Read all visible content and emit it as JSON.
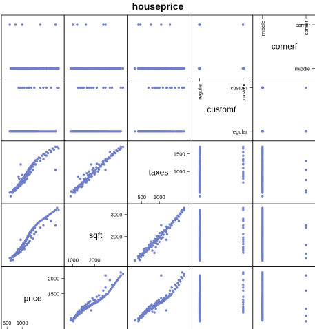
{
  "title": "houseprice",
  "colors": {
    "points": "#7080c8",
    "frame": "#000000",
    "background": "#ffffff"
  },
  "chart_data": {
    "type": "scatter",
    "title": "houseprice",
    "variables": [
      {
        "name": "price",
        "kind": "numeric",
        "range": [
          450,
          2250
        ],
        "ticks_low": [
          "500",
          "1000"
        ],
        "ticks_high": [
          "1500",
          "2000"
        ]
      },
      {
        "name": "sqft",
        "kind": "numeric",
        "range": [
          800,
          3300
        ],
        "ticks_low": [
          "1000",
          "2000"
        ],
        "ticks_high": [
          "2000",
          "3000"
        ]
      },
      {
        "name": "taxes",
        "kind": "numeric",
        "range": [
          200,
          1750
        ],
        "ticks_low": [
          "500",
          "1000"
        ],
        "ticks_high": [
          "1000",
          "1500"
        ]
      },
      {
        "name": "customf",
        "kind": "factor",
        "levels": [
          "regular",
          "custom"
        ]
      },
      {
        "name": "cornerf",
        "kind": "factor",
        "levels": [
          "middle",
          "corner"
        ]
      }
    ],
    "observations": [
      [
        690,
        922,
        439,
        0,
        0
      ],
      [
        620,
        980,
        417,
        0,
        0
      ],
      [
        640,
        1020,
        410,
        0,
        0
      ],
      [
        590,
        1010,
        405,
        0,
        1
      ],
      [
        720,
        1080,
        474,
        0,
        0
      ],
      [
        680,
        1100,
        398,
        0,
        0
      ],
      [
        740,
        1150,
        515,
        0,
        0
      ],
      [
        760,
        1130,
        540,
        0,
        0
      ],
      [
        790,
        1230,
        520,
        0,
        0
      ],
      [
        780,
        1200,
        460,
        0,
        1
      ],
      [
        820,
        1250,
        555,
        0,
        0
      ],
      [
        850,
        1320,
        600,
        0,
        0
      ],
      [
        830,
        1300,
        570,
        0,
        0
      ],
      [
        880,
        1340,
        630,
        0,
        0
      ],
      [
        870,
        1400,
        560,
        0,
        0
      ],
      [
        900,
        1380,
        650,
        0,
        0
      ],
      [
        920,
        1420,
        690,
        0,
        0
      ],
      [
        940,
        1450,
        600,
        0,
        0
      ],
      [
        950,
        1500,
        720,
        0,
        0
      ],
      [
        960,
        1460,
        640,
        0,
        0
      ],
      [
        980,
        1520,
        780,
        0,
        0
      ],
      [
        990,
        1550,
        700,
        0,
        0
      ],
      [
        1000,
        1600,
        760,
        0,
        1
      ],
      [
        1020,
        1580,
        810,
        0,
        0
      ],
      [
        1030,
        1650,
        740,
        0,
        0
      ],
      [
        1040,
        1700,
        820,
        0,
        0
      ],
      [
        1050,
        1620,
        690,
        0,
        0
      ],
      [
        1060,
        1720,
        860,
        0,
        0
      ],
      [
        1080,
        1680,
        800,
        0,
        0
      ],
      [
        1090,
        1750,
        900,
        0,
        0
      ],
      [
        1100,
        1800,
        840,
        0,
        0
      ],
      [
        1110,
        1760,
        760,
        0,
        0
      ],
      [
        1120,
        1850,
        930,
        0,
        0
      ],
      [
        1130,
        1820,
        880,
        0,
        0
      ],
      [
        1150,
        1900,
        950,
        0,
        0
      ],
      [
        1160,
        1880,
        870,
        0,
        0
      ],
      [
        1170,
        1940,
        990,
        0,
        0
      ],
      [
        1180,
        2000,
        920,
        0,
        0
      ],
      [
        1190,
        1960,
        1010,
        0,
        0
      ],
      [
        1200,
        2050,
        1050,
        0,
        0
      ],
      [
        1210,
        2020,
        960,
        0,
        0
      ],
      [
        1220,
        2100,
        1080,
        0,
        0
      ],
      [
        1240,
        2150,
        1000,
        0,
        0
      ],
      [
        1250,
        2080,
        1120,
        0,
        0
      ],
      [
        1260,
        2200,
        1060,
        0,
        0
      ],
      [
        1280,
        2250,
        1150,
        0,
        0
      ],
      [
        1300,
        2180,
        1100,
        0,
        0
      ],
      [
        1320,
        2300,
        1180,
        0,
        0
      ],
      [
        1340,
        2350,
        1210,
        0,
        0
      ],
      [
        1360,
        2280,
        1140,
        0,
        0
      ],
      [
        1380,
        2400,
        1250,
        0,
        0
      ],
      [
        1400,
        2450,
        1200,
        0,
        0
      ],
      [
        1420,
        2380,
        1280,
        0,
        0
      ],
      [
        1450,
        2500,
        1320,
        0,
        0
      ],
      [
        1480,
        2550,
        1290,
        0,
        0
      ],
      [
        1500,
        2600,
        1350,
        0,
        0
      ],
      [
        1550,
        2650,
        1400,
        0,
        0
      ],
      [
        1600,
        2700,
        1380,
        0,
        0
      ],
      [
        1650,
        2750,
        1450,
        0,
        0
      ],
      [
        1700,
        2800,
        1500,
        0,
        0
      ],
      [
        1750,
        2850,
        1480,
        0,
        0
      ],
      [
        1800,
        2900,
        1550,
        0,
        0
      ],
      [
        1850,
        2950,
        1520,
        0,
        0
      ],
      [
        1900,
        3000,
        1600,
        0,
        0
      ],
      [
        1950,
        3050,
        1580,
        0,
        0
      ],
      [
        2000,
        3100,
        1650,
        0,
        0
      ],
      [
        2050,
        3150,
        1620,
        0,
        0
      ],
      [
        2100,
        3200,
        1700,
        0,
        0
      ],
      [
        900,
        1250,
        580,
        0,
        0
      ],
      [
        1050,
        1500,
        700,
        0,
        0
      ],
      [
        1200,
        1700,
        900,
        0,
        0
      ],
      [
        1350,
        1900,
        1050,
        0,
        0
      ],
      [
        1000,
        1400,
        650,
        0,
        0
      ],
      [
        1150,
        1600,
        780,
        0,
        0
      ],
      [
        1300,
        2000,
        980,
        0,
        0
      ],
      [
        1450,
        2200,
        1200,
        0,
        0
      ],
      [
        800,
        1150,
        500,
        0,
        0
      ],
      [
        950,
        1300,
        620,
        0,
        0
      ],
      [
        1100,
        1550,
        740,
        0,
        0
      ],
      [
        1250,
        1800,
        930,
        0,
        0
      ],
      [
        750,
        1100,
        450,
        0,
        0
      ],
      [
        850,
        1200,
        530,
        0,
        0
      ],
      [
        1070,
        1420,
        690,
        1,
        0
      ],
      [
        1400,
        2100,
        1220,
        1,
        0
      ],
      [
        900,
        1350,
        800,
        1,
        0
      ],
      [
        1220,
        1750,
        1000,
        1,
        0
      ],
      [
        1700,
        2500,
        1350,
        1,
        0
      ],
      [
        2150,
        3300,
        1700,
        1,
        0
      ],
      [
        2200,
        3200,
        1650,
        1,
        0
      ],
      [
        1600,
        2400,
        1300,
        1,
        1
      ],
      [
        1000,
        1500,
        900,
        1,
        0
      ],
      [
        1150,
        1650,
        950,
        1,
        0
      ],
      [
        1300,
        1950,
        1100,
        1,
        0
      ],
      [
        1800,
        2800,
        1450,
        1,
        0
      ],
      [
        1950,
        2700,
        1550,
        1,
        0
      ],
      [
        880,
        1250,
        860,
        1,
        0
      ],
      [
        950,
        1850,
        1200,
        1,
        0
      ],
      [
        700,
        1050,
        480,
        0,
        0
      ],
      [
        620,
        900,
        300,
        0,
        0
      ],
      [
        2100,
        2500,
        1050,
        0,
        1
      ]
    ]
  }
}
